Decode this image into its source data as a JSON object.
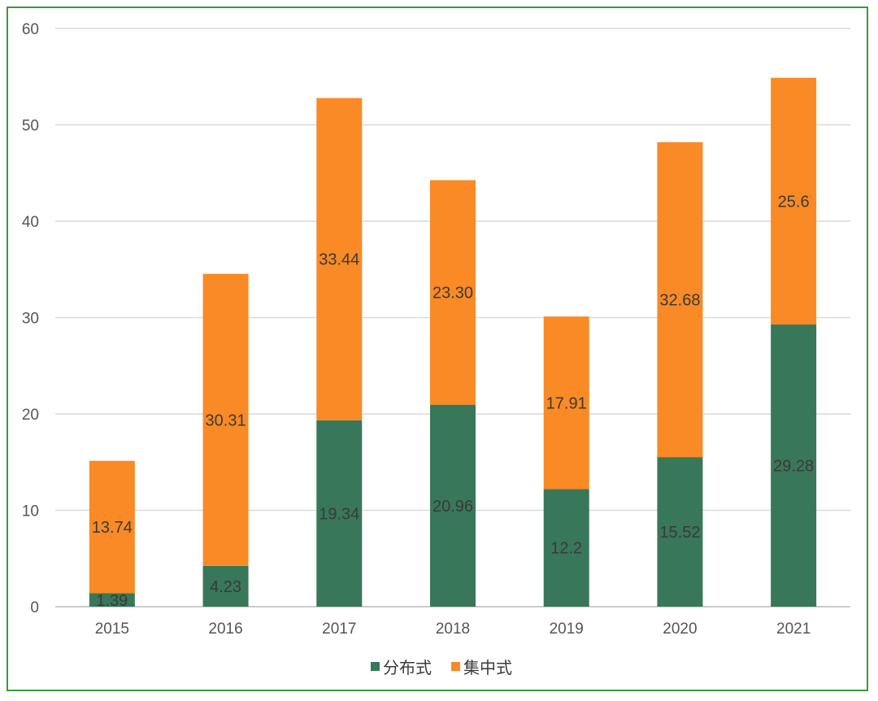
{
  "chart_data": {
    "type": "bar",
    "stacked": true,
    "categories": [
      "2015",
      "2016",
      "2017",
      "2018",
      "2019",
      "2020",
      "2021"
    ],
    "series": [
      {
        "name": "分布式",
        "color": "#38775a",
        "values": [
          1.39,
          4.23,
          19.34,
          20.96,
          12.2,
          15.52,
          29.28
        ],
        "labels": [
          "1.39",
          "4.23",
          "19.34",
          "20.96",
          "12.2",
          "15.52",
          "29.28"
        ]
      },
      {
        "name": "集中式",
        "color": "#f98a25",
        "values": [
          13.74,
          30.31,
          33.44,
          23.3,
          17.91,
          32.68,
          25.6
        ],
        "labels": [
          "13.74",
          "30.31",
          "33.44",
          "23.30",
          "17.91",
          "32.68",
          "25.6"
        ]
      }
    ],
    "y_ticks": [
      "0",
      "10",
      "20",
      "30",
      "40",
      "50",
      "60"
    ],
    "ylim": [
      0,
      60
    ],
    "grid": true,
    "legend_position": "bottom"
  }
}
